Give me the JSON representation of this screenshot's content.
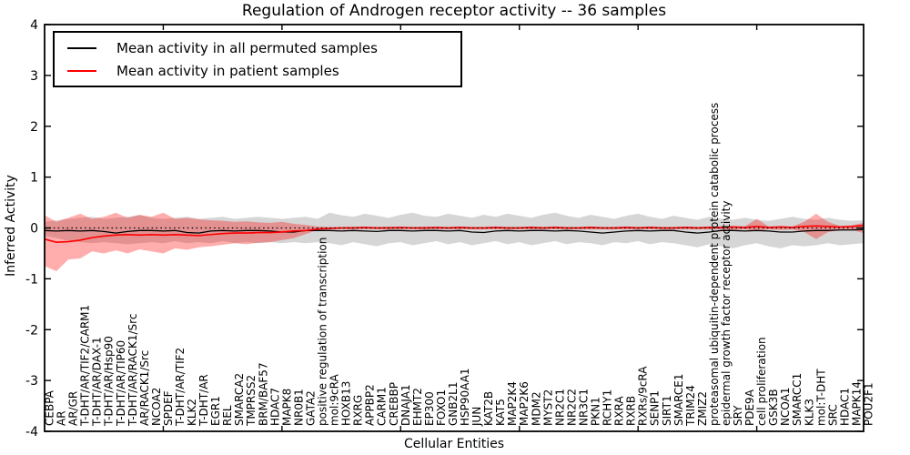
{
  "figure": {
    "title": "Regulation of Androgen receptor activity -- 36 samples",
    "xlabel": "Cellular Entities",
    "ylabel": "Inferred Activity"
  },
  "legend": {
    "items": [
      {
        "name": "permuted",
        "label": "Mean activity in all permuted samples",
        "color": "#000000"
      },
      {
        "name": "patient",
        "label": "Mean activity in patient samples",
        "color": "#ff0000"
      }
    ]
  },
  "colors": {
    "permuted_line": "#000000",
    "permuted_band": "rgba(0,0,0,0.16)",
    "patient_line": "#ff0000",
    "patient_band": "rgba(255,0,0,0.32)",
    "zero_line": "#000000",
    "axis": "#000000"
  },
  "chart_data": {
    "type": "line",
    "title": "Regulation of Androgen receptor activity -- 36 samples",
    "xlabel": "Cellular Entities",
    "ylabel": "Inferred Activity",
    "ylim": [
      -4,
      4
    ],
    "yticks": [
      4,
      3,
      2,
      1,
      0,
      -1,
      -2,
      -3,
      -4
    ],
    "zero_reference_line": "dotted",
    "legend_position": "upper left",
    "grid": false,
    "categories": [
      "CEBPA",
      "AR",
      "AR/GR",
      "T-DHT/AR/TIF2/CARM1",
      "T-DHT/AR/DAX-1",
      "T-DHT/AR/Hsp90",
      "T-DHT/AR/TIP60",
      "T-DHT/AR/RACK1/Src",
      "AR/RACK1/Src",
      "NCOA2",
      "SPDEF",
      "T-DHT/AR/TIF2",
      "KLK2",
      "T-DHT/AR",
      "EGR1",
      "REL",
      "SMARCA2",
      "TMPRSS2",
      "BRM/BAF57",
      "HDAC7",
      "MAPK8",
      "NR0B1",
      "GATA2",
      "positive regulation of transcription",
      "mol:9cRA",
      "HOXB13",
      "RXRG",
      "APPBP2",
      "CARM1",
      "CREBBP",
      "DNAJA1",
      "EHMT2",
      "EP300",
      "FOXO1",
      "GNB2L1",
      "HSP90AA1",
      "JUN",
      "KAT2B",
      "KAT5",
      "MAP2K4",
      "MAP2K6",
      "MDM2",
      "MYST2",
      "NR2C1",
      "NR2C2",
      "NR3C1",
      "PKN1",
      "RCHY1",
      "RXRA",
      "RXRB",
      "RXRs/9cRA",
      "SENP1",
      "SIRT1",
      "SMARCE1",
      "TRIM24",
      "ZMIZ2",
      "proteasomal ubiquitin-dependent protein catabolic process",
      "epidermal growth factor receptor activity",
      "SRY",
      "PDE9A",
      "cell proliferation",
      "GSK3B",
      "NCOA1",
      "SMARCC1",
      "KLK3",
      "mol:T-DHT",
      "SRC",
      "HDAC1",
      "MAPK14",
      "POU2F1"
    ],
    "series": [
      {
        "name": "Mean activity in all permuted samples",
        "color": "#000000",
        "band_color": "rgba(0,0,0,0.16)",
        "values": [
          -0.05,
          -0.06,
          -0.05,
          -0.06,
          -0.05,
          -0.07,
          -0.1,
          -0.07,
          -0.05,
          -0.05,
          -0.06,
          -0.05,
          -0.09,
          -0.1,
          -0.06,
          -0.05,
          -0.06,
          -0.05,
          -0.05,
          -0.06,
          -0.08,
          -0.08,
          -0.05,
          -0.05,
          -0.05,
          -0.06,
          -0.05,
          -0.06,
          -0.07,
          -0.05,
          -0.05,
          -0.06,
          -0.05,
          -0.05,
          -0.06,
          -0.05,
          -0.08,
          -0.09,
          -0.06,
          -0.05,
          -0.06,
          -0.05,
          -0.05,
          -0.06,
          -0.05,
          -0.06,
          -0.08,
          -0.1,
          -0.08,
          -0.06,
          -0.05,
          -0.06,
          -0.05,
          -0.05,
          -0.08,
          -0.1,
          -0.08,
          -0.05,
          -0.05,
          -0.06,
          -0.05,
          -0.06,
          -0.08,
          -0.08,
          -0.06,
          -0.05,
          -0.05,
          -0.04,
          -0.04,
          -0.03
        ],
        "band_upper": [
          0.12,
          0.15,
          0.18,
          0.2,
          0.22,
          0.18,
          0.2,
          0.22,
          0.25,
          0.2,
          0.18,
          0.2,
          0.22,
          0.18,
          0.2,
          0.22,
          0.18,
          0.2,
          0.22,
          0.2,
          0.18,
          0.2,
          0.22,
          0.18,
          0.3,
          0.25,
          0.22,
          0.28,
          0.24,
          0.2,
          0.26,
          0.3,
          0.24,
          0.22,
          0.28,
          0.24,
          0.2,
          0.26,
          0.22,
          0.28,
          0.24,
          0.2,
          0.26,
          0.3,
          0.24,
          0.2,
          0.26,
          0.22,
          0.18,
          0.24,
          0.28,
          0.22,
          0.18,
          0.24,
          0.2,
          0.16,
          0.22,
          0.18,
          0.16,
          0.2,
          0.16,
          0.14,
          0.18,
          0.22,
          0.18,
          0.16,
          0.2,
          0.16,
          0.14,
          0.15
        ],
        "band_lower": [
          -0.15,
          -0.2,
          -0.25,
          -0.28,
          -0.3,
          -0.28,
          -0.3,
          -0.32,
          -0.3,
          -0.28,
          -0.3,
          -0.26,
          -0.3,
          -0.28,
          -0.3,
          -0.26,
          -0.3,
          -0.28,
          -0.3,
          -0.28,
          -0.3,
          -0.28,
          -0.3,
          -0.28,
          -0.3,
          -0.34,
          -0.28,
          -0.32,
          -0.36,
          -0.3,
          -0.28,
          -0.34,
          -0.3,
          -0.26,
          -0.32,
          -0.28,
          -0.34,
          -0.3,
          -0.26,
          -0.32,
          -0.28,
          -0.34,
          -0.3,
          -0.26,
          -0.32,
          -0.28,
          -0.3,
          -0.34,
          -0.28,
          -0.3,
          -0.26,
          -0.32,
          -0.28,
          -0.3,
          -0.34,
          -0.38,
          -0.32,
          -0.36,
          -0.4,
          -0.34,
          -0.3,
          -0.36,
          -0.4,
          -0.34,
          -0.36,
          -0.34,
          -0.3,
          -0.34,
          -0.32,
          -0.3
        ]
      },
      {
        "name": "Mean activity in patient samples",
        "color": "#ff0000",
        "band_color": "rgba(255,0,0,0.32)",
        "values": [
          -0.22,
          -0.28,
          -0.27,
          -0.24,
          -0.19,
          -0.16,
          -0.14,
          -0.13,
          -0.14,
          -0.13,
          -0.14,
          -0.13,
          -0.14,
          -0.15,
          -0.13,
          -0.11,
          -0.1,
          -0.1,
          -0.09,
          -0.09,
          -0.08,
          -0.06,
          -0.05,
          -0.02,
          -0.01,
          0.0,
          0.0,
          0.01,
          0.0,
          0.0,
          0.01,
          0.0,
          0.0,
          0.01,
          0.0,
          0.01,
          0.0,
          0.0,
          0.01,
          0.0,
          0.0,
          0.01,
          0.0,
          0.01,
          0.0,
          0.0,
          0.01,
          0.0,
          0.0,
          0.01,
          0.0,
          0.01,
          0.0,
          0.0,
          0.01,
          0.0,
          0.01,
          0.01,
          0.02,
          0.01,
          0.03,
          0.01,
          0.02,
          0.01,
          0.03,
          0.04,
          0.03,
          0.02,
          0.03,
          0.05
        ],
        "band_upper": [
          0.25,
          0.12,
          0.2,
          0.28,
          0.18,
          0.22,
          0.3,
          0.2,
          0.26,
          0.22,
          0.3,
          0.18,
          0.2,
          0.17,
          0.15,
          0.14,
          0.12,
          0.13,
          0.11,
          0.1,
          0.12,
          0.08,
          0.06,
          0.03,
          0.02,
          0.02,
          0.03,
          0.02,
          0.02,
          0.03,
          0.02,
          0.02,
          0.03,
          0.02,
          0.02,
          0.03,
          0.02,
          0.02,
          0.03,
          0.02,
          0.02,
          0.03,
          0.02,
          0.03,
          0.02,
          0.02,
          0.03,
          0.02,
          0.02,
          0.03,
          0.02,
          0.03,
          0.02,
          0.02,
          0.03,
          0.02,
          0.03,
          0.03,
          0.04,
          0.03,
          0.18,
          0.03,
          0.04,
          0.03,
          0.12,
          0.28,
          0.12,
          0.04,
          0.05,
          0.1
        ],
        "band_lower": [
          -0.75,
          -0.85,
          -0.62,
          -0.6,
          -0.46,
          -0.5,
          -0.44,
          -0.5,
          -0.42,
          -0.46,
          -0.5,
          -0.4,
          -0.43,
          -0.38,
          -0.36,
          -0.33,
          -0.3,
          -0.32,
          -0.29,
          -0.28,
          -0.24,
          -0.2,
          -0.12,
          -0.04,
          -0.03,
          -0.03,
          -0.03,
          -0.03,
          -0.03,
          -0.03,
          -0.03,
          -0.03,
          -0.03,
          -0.03,
          -0.03,
          -0.03,
          -0.03,
          -0.03,
          -0.03,
          -0.03,
          -0.03,
          -0.03,
          -0.03,
          -0.03,
          -0.03,
          -0.03,
          -0.03,
          -0.03,
          -0.03,
          -0.03,
          -0.03,
          -0.03,
          -0.03,
          -0.03,
          -0.03,
          -0.03,
          -0.03,
          -0.03,
          -0.04,
          -0.03,
          -0.06,
          -0.03,
          -0.04,
          -0.03,
          -0.08,
          -0.22,
          -0.08,
          -0.04,
          -0.04,
          -0.1
        ]
      }
    ]
  }
}
